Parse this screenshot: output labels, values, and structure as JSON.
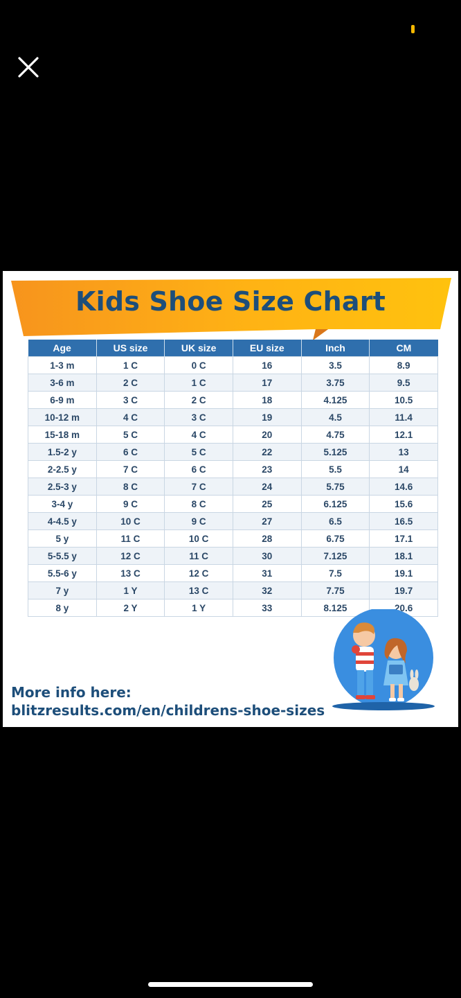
{
  "viewer": {
    "close_icon": "close-icon"
  },
  "chart": {
    "title": "Kids Shoe Size Chart",
    "columns": [
      "Age",
      "US size",
      "UK size",
      "EU size",
      "Inch",
      "CM"
    ],
    "rows": [
      [
        "1-3 m",
        "1 C",
        "0 C",
        "16",
        "3.5",
        "8.9"
      ],
      [
        "3-6 m",
        "2 C",
        "1 C",
        "17",
        "3.75",
        "9.5"
      ],
      [
        "6-9 m",
        "3 C",
        "2 C",
        "18",
        "4.125",
        "10.5"
      ],
      [
        "10-12 m",
        "4 C",
        "3 C",
        "19",
        "4.5",
        "11.4"
      ],
      [
        "15-18 m",
        "5 C",
        "4 C",
        "20",
        "4.75",
        "12.1"
      ],
      [
        "1.5-2 y",
        "6 C",
        "5 C",
        "22",
        "5.125",
        "13"
      ],
      [
        "2-2.5 y",
        "7 C",
        "6 C",
        "23",
        "5.5",
        "14"
      ],
      [
        "2.5-3 y",
        "8 C",
        "7 C",
        "24",
        "5.75",
        "14.6"
      ],
      [
        "3-4 y",
        "9 C",
        "8 C",
        "25",
        "6.125",
        "15.6"
      ],
      [
        "4-4.5 y",
        "10 C",
        "9 C",
        "27",
        "6.5",
        "16.5"
      ],
      [
        "5 y",
        "11 C",
        "10 C",
        "28",
        "6.75",
        "17.1"
      ],
      [
        "5-5.5 y",
        "12 C",
        "11 C",
        "30",
        "7.125",
        "18.1"
      ],
      [
        "5.5-6 y",
        "13 C",
        "12 C",
        "31",
        "7.5",
        "19.1"
      ],
      [
        "7 y",
        "1 Y",
        "13 C",
        "32",
        "7.75",
        "19.7"
      ],
      [
        "8 y",
        "2 Y",
        "1 Y",
        "33",
        "8.125",
        "20.6"
      ]
    ],
    "footer_line1": "More info here:",
    "footer_line2": "blitzresults.com/en/childrens-shoe-sizes",
    "colors": {
      "banner_orange": "#f7941d",
      "banner_yellow": "#ffc20e",
      "header_blue": "#2f6fad",
      "title_navy": "#1d4e7a"
    }
  }
}
